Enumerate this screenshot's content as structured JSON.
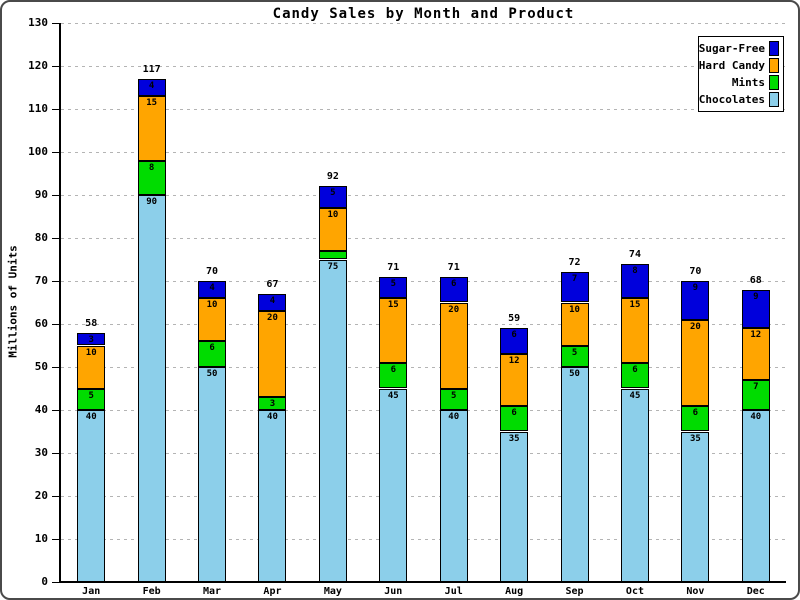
{
  "chart_data": {
    "type": "bar",
    "stacked": true,
    "title": "Candy Sales by Month and Product",
    "xlabel": "",
    "ylabel": "Millions of Units",
    "ylim": [
      0,
      130
    ],
    "ytick_step": 10,
    "grid": "horizontal-dashed",
    "categories": [
      "Jan",
      "Feb",
      "Mar",
      "Apr",
      "May",
      "Jun",
      "Jul",
      "Aug",
      "Sep",
      "Oct",
      "Nov",
      "Dec"
    ],
    "series": [
      {
        "name": "Chocolates",
        "color": "#8CCFEA",
        "values": [
          40,
          90,
          50,
          40,
          75,
          45,
          40,
          35,
          50,
          45,
          35,
          40
        ]
      },
      {
        "name": "Mints",
        "color": "#00DC00",
        "values": [
          5,
          8,
          6,
          3,
          2,
          6,
          5,
          6,
          5,
          6,
          6,
          7
        ]
      },
      {
        "name": "Hard Candy",
        "color": "#FFA500",
        "values": [
          10,
          15,
          10,
          20,
          10,
          15,
          20,
          12,
          10,
          15,
          20,
          12
        ]
      },
      {
        "name": "Sugar-Free",
        "color": "#0000DC",
        "values": [
          3,
          4,
          4,
          4,
          5,
          5,
          6,
          6,
          7,
          8,
          9,
          9
        ]
      }
    ],
    "totals": [
      58,
      117,
      70,
      67,
      92,
      71,
      71,
      59,
      72,
      74,
      70,
      68
    ],
    "legend": {
      "position": "top-right",
      "items_top_to_bottom": [
        "Sugar-Free",
        "Hard Candy",
        "Mints",
        "Chocolates"
      ]
    }
  }
}
